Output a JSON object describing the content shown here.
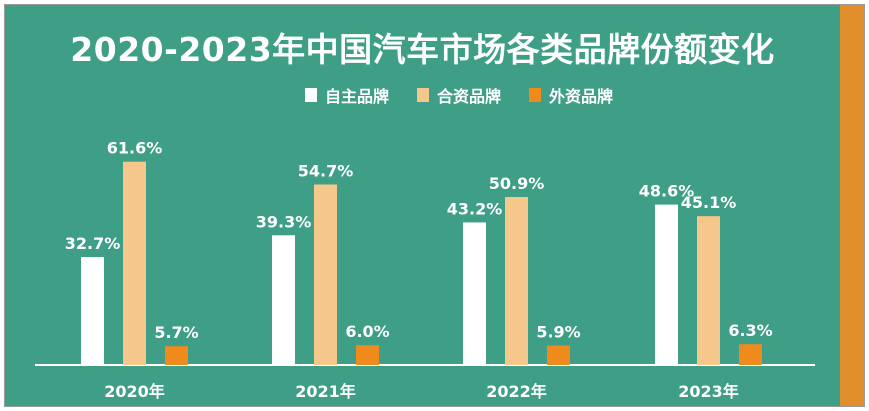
{
  "title": "2020-2023年中国汽车市场各类品牌份额变化",
  "colors": {
    "background": "#3e9e86",
    "accent_strip": "#e08f2b",
    "series": [
      "#ffffff",
      "#f6c78a",
      "#f08a1c"
    ]
  },
  "chart_data": {
    "type": "bar",
    "title": "2020-2023年中国汽车市场各类品牌份额变化",
    "categories": [
      "2020年",
      "2021年",
      "2022年",
      "2023年"
    ],
    "series": [
      {
        "name": "自主品牌",
        "values": [
          32.7,
          39.3,
          43.2,
          48.6
        ],
        "labels": [
          "32.7%",
          "39.3%",
          "43.2%",
          "48.6%"
        ]
      },
      {
        "name": "合资品牌",
        "values": [
          61.6,
          54.7,
          50.9,
          45.1
        ],
        "labels": [
          "61.6%",
          "54.7%",
          "50.9%",
          "45.1%"
        ]
      },
      {
        "name": "外资品牌",
        "values": [
          5.7,
          6.0,
          5.9,
          6.3
        ],
        "labels": [
          "5.7%",
          "6.0%",
          "5.9%",
          "6.3%"
        ]
      }
    ],
    "ylim": [
      0,
      70
    ],
    "grid": false,
    "legend": "top-center",
    "xlabel": "",
    "ylabel": ""
  }
}
